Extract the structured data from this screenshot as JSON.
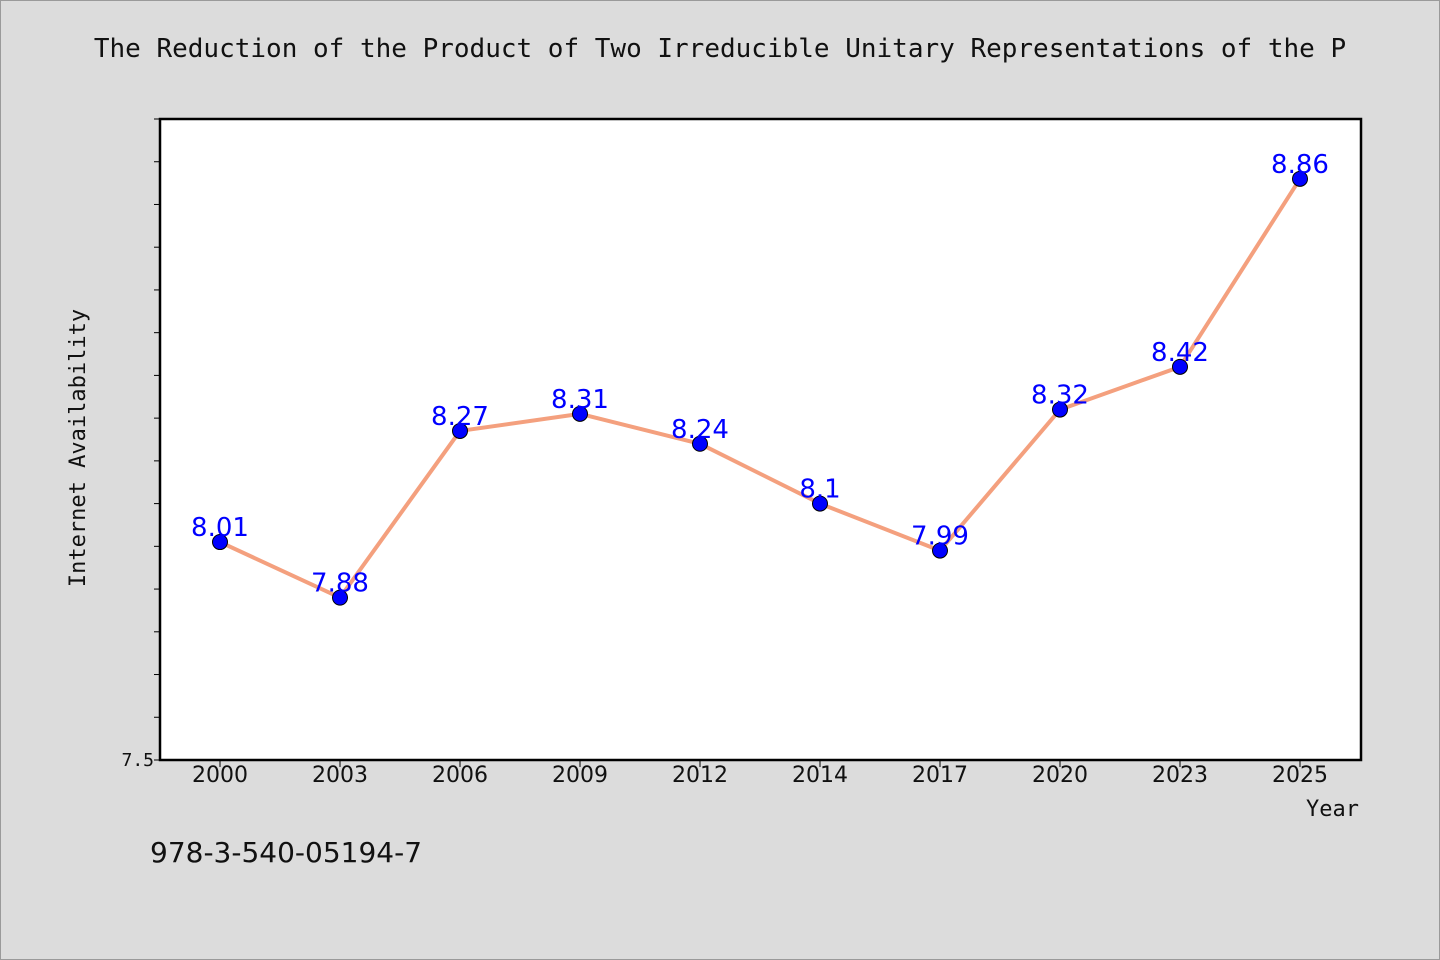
{
  "chart_data": {
    "type": "line",
    "title": "The Reduction of the Product of Two Irreducible Unitary Representations of the P",
    "xlabel": "Year",
    "ylabel": "Internet Availability",
    "categories": [
      "2000",
      "2003",
      "2006",
      "2009",
      "2012",
      "2014",
      "2017",
      "2020",
      "2023",
      "2025"
    ],
    "series": [
      {
        "values": [
          8.01,
          7.88,
          8.27,
          8.31,
          8.24,
          8.1,
          7.99,
          8.32,
          8.42,
          8.86
        ]
      }
    ],
    "data_labels": [
      "8.01",
      "7.88",
      "8.27",
      "8.31",
      "8.24",
      "8.1",
      "7.99",
      "8.32",
      "8.42",
      "8.86"
    ],
    "ylim": [
      7.5,
      9.0
    ],
    "ytick_labels": [
      "7.5"
    ],
    "grid": false,
    "legend": "none",
    "colors": {
      "line": "#f4a07e",
      "marker": "#0000ff",
      "data_label": "#0000ff",
      "background": "#dcdcdc",
      "plot_area": "#ffffff"
    }
  },
  "footer": {
    "isbn": "978-3-540-05194-7"
  }
}
